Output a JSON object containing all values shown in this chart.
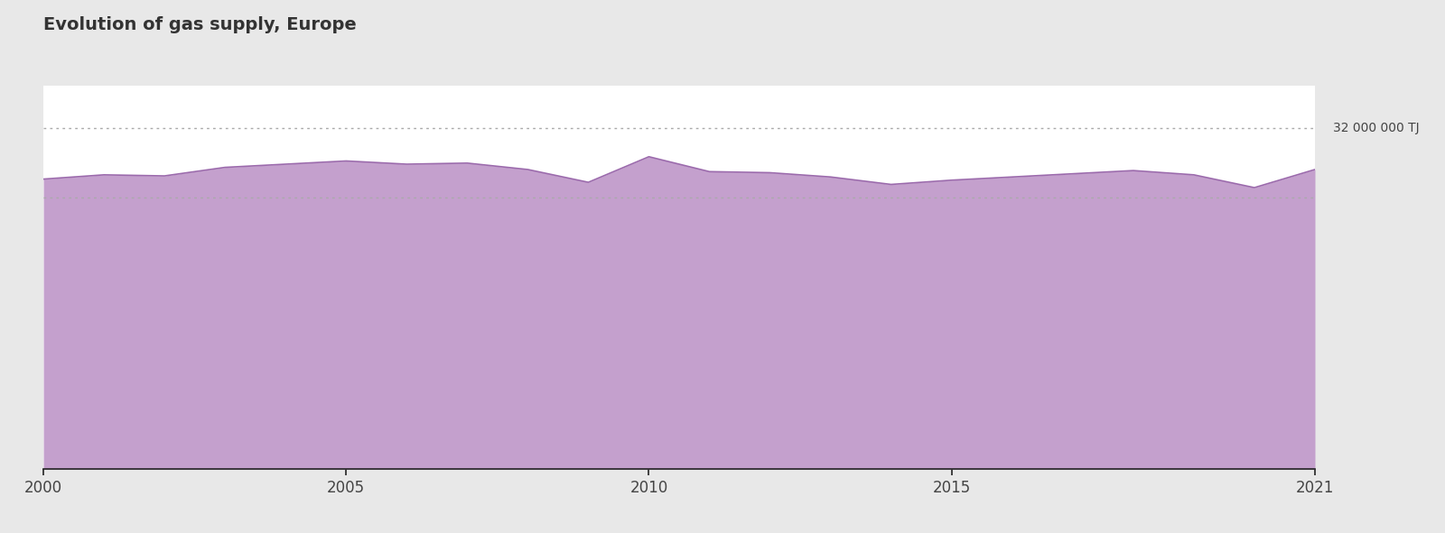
{
  "title": "Evolution of gas supply, Europe",
  "title_fontsize": 14,
  "title_color": "#333333",
  "background_outer": "#e8e8e8",
  "background_inner": "#ffffff",
  "area_color": "#c4a0cd",
  "line_color": "#9b6aac",
  "years": [
    2000,
    2001,
    2002,
    2003,
    2004,
    2005,
    2006,
    2007,
    2008,
    2009,
    2010,
    2011,
    2012,
    2013,
    2014,
    2015,
    2016,
    2017,
    2018,
    2019,
    2020,
    2021
  ],
  "values": [
    27200000,
    27600000,
    27500000,
    28300000,
    28600000,
    28900000,
    28600000,
    28700000,
    28100000,
    26900000,
    29300000,
    27900000,
    27800000,
    27400000,
    26700000,
    27100000,
    27400000,
    27700000,
    28000000,
    27600000,
    26400000,
    28100000
  ],
  "upper_ref": 32000000,
  "lower_ref": 25500000,
  "upper_ref_label": "32 000 000 TJ",
  "ref_color": "#aaaaaa",
  "tick_color": "#444444",
  "tick_fontsize": 12,
  "ylim_min": 0,
  "ylim_max": 36000000,
  "xlim_min": 2000,
  "xlim_max": 2021,
  "xticks": [
    2000,
    2005,
    2010,
    2015,
    2021
  ]
}
